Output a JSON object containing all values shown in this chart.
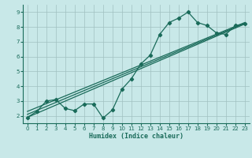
{
  "xlabel": "Humidex (Indice chaleur)",
  "bg_color": "#c8e8e8",
  "grid_color": "#a0c0c0",
  "line_color": "#1a6b5a",
  "xlim": [
    -0.5,
    23.5
  ],
  "ylim": [
    1.5,
    9.5
  ],
  "xticks": [
    0,
    1,
    2,
    3,
    4,
    5,
    6,
    7,
    8,
    9,
    10,
    11,
    12,
    13,
    14,
    15,
    16,
    17,
    18,
    19,
    20,
    21,
    22,
    23
  ],
  "yticks": [
    2,
    3,
    4,
    5,
    6,
    7,
    8,
    9
  ],
  "dotted_series": {
    "x": [
      0,
      1,
      2,
      3,
      4,
      5,
      6,
      7,
      8,
      9,
      10,
      11,
      12,
      13,
      14,
      15,
      16,
      17,
      18,
      19,
      20,
      21,
      22,
      23
    ],
    "y": [
      1.9,
      2.3,
      3.0,
      3.1,
      2.5,
      2.35,
      2.8,
      2.8,
      1.85,
      2.4,
      3.8,
      4.5,
      5.5,
      6.1,
      7.5,
      8.3,
      8.6,
      9.0,
      8.3,
      8.1,
      7.6,
      7.5,
      8.1,
      8.2
    ]
  },
  "straight_lines": [
    {
      "x": [
        0,
        23
      ],
      "y": [
        1.9,
        8.2
      ]
    },
    {
      "x": [
        0,
        23
      ],
      "y": [
        2.1,
        8.25
      ]
    },
    {
      "x": [
        0,
        23
      ],
      "y": [
        2.3,
        8.3
      ]
    }
  ]
}
